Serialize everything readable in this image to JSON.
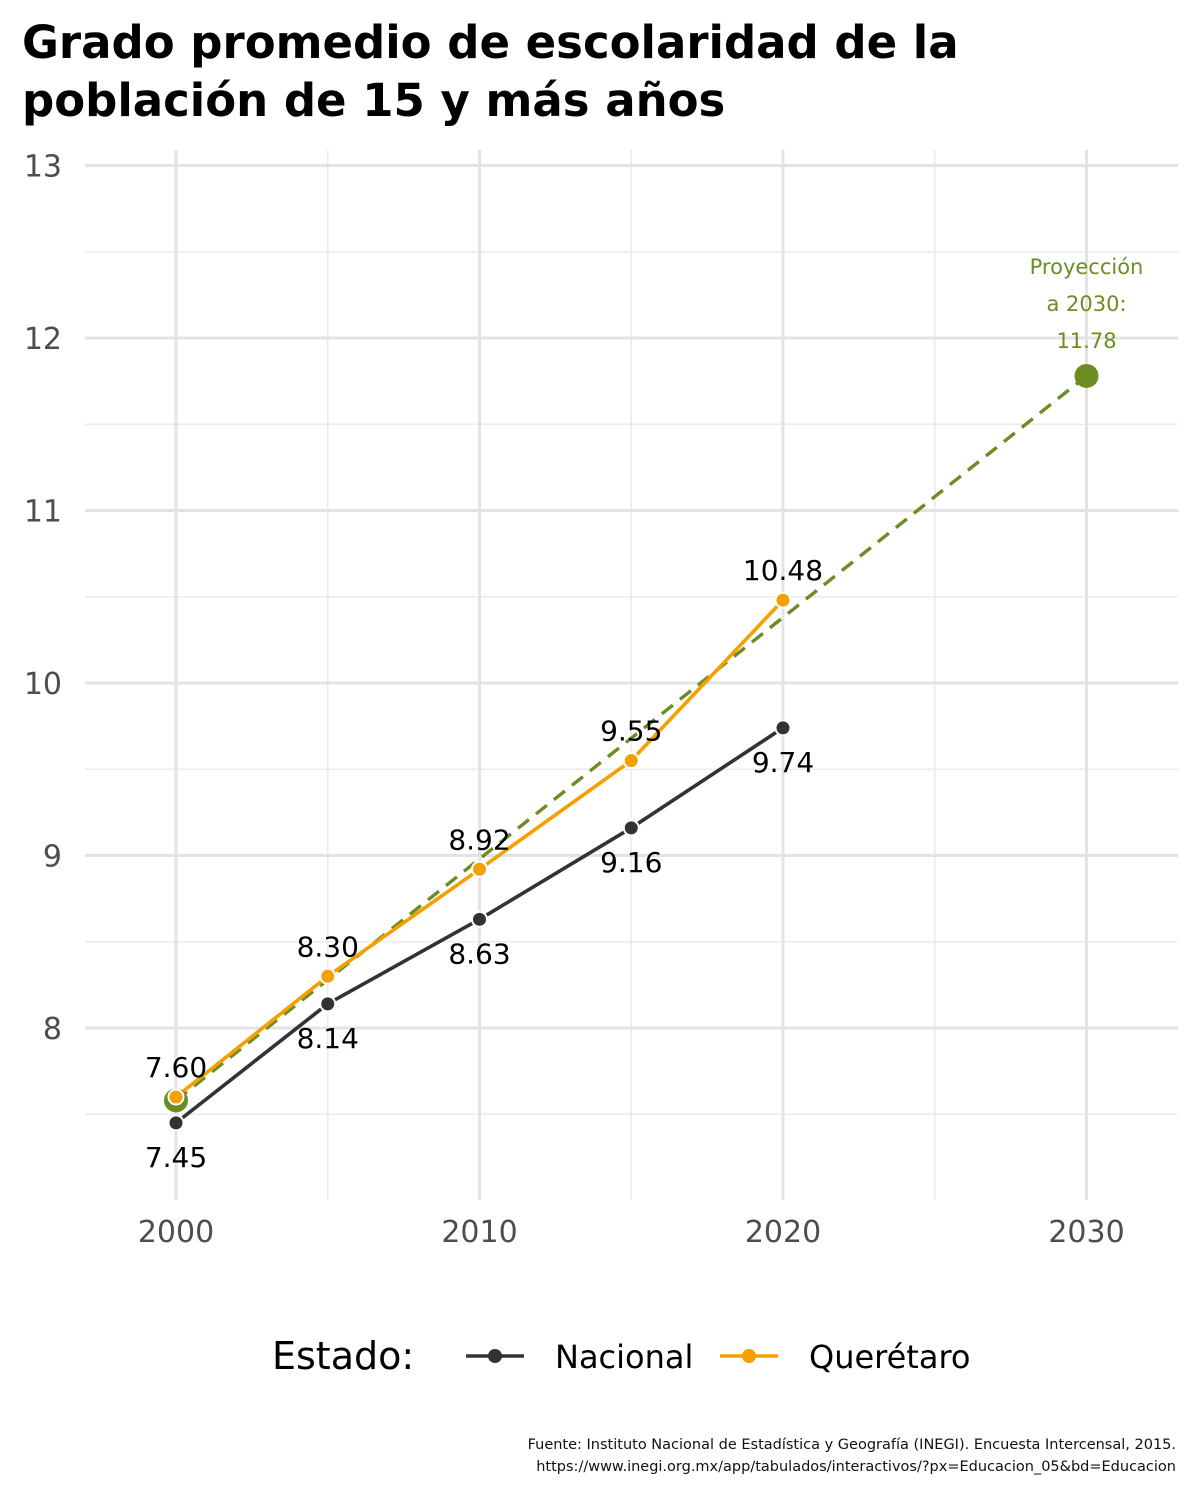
{
  "chart_data": {
    "type": "line",
    "title": "Grado promedio de escolaridad de la población de 15 y más años",
    "title_lines": [
      "Grado promedio de escolaridad de la",
      "población de 15 y más años"
    ],
    "xlabel": "",
    "ylabel": "",
    "xlim": [
      1997,
      2033
    ],
    "ylim": [
      7,
      13
    ],
    "x_ticks": [
      "2000",
      "2010",
      "2020",
      "2030"
    ],
    "y_ticks": [
      "8",
      "9",
      "10",
      "11",
      "12",
      "13"
    ],
    "grid": true,
    "legend": {
      "title": "Estado:",
      "position": "bottom",
      "entries": [
        "Nacional",
        "Querétaro"
      ]
    },
    "series": [
      {
        "name": "Nacional",
        "color": "#333333",
        "x": [
          2000,
          2005,
          2010,
          2015,
          2020
        ],
        "values": [
          7.45,
          8.14,
          8.63,
          9.16,
          9.74
        ],
        "labels": [
          "7.45",
          "8.14",
          "8.63",
          "9.16",
          "9.74"
        ]
      },
      {
        "name": "Querétaro",
        "color": "#F5A000",
        "x": [
          2000,
          2005,
          2010,
          2015,
          2020
        ],
        "values": [
          7.6,
          8.3,
          8.92,
          9.55,
          10.48
        ],
        "labels": [
          "7.60",
          "8.30",
          "8.92",
          "9.55",
          "10.48"
        ]
      }
    ],
    "projection": {
      "color": "#6B8E23",
      "x": [
        2000,
        2030
      ],
      "values": [
        7.58,
        11.78
      ],
      "label_lines": [
        "Proyección",
        "a 2030:",
        "11.78"
      ]
    }
  },
  "caption": {
    "line1": "Fuente: Instituto Nacional de Estadística y Geografía (INEGI). Encuesta Intercensal, 2015.",
    "line2": "https://www.inegi.org.mx/app/tabulados/interactivos/?px=Educacion_05&bd=Educacion"
  }
}
